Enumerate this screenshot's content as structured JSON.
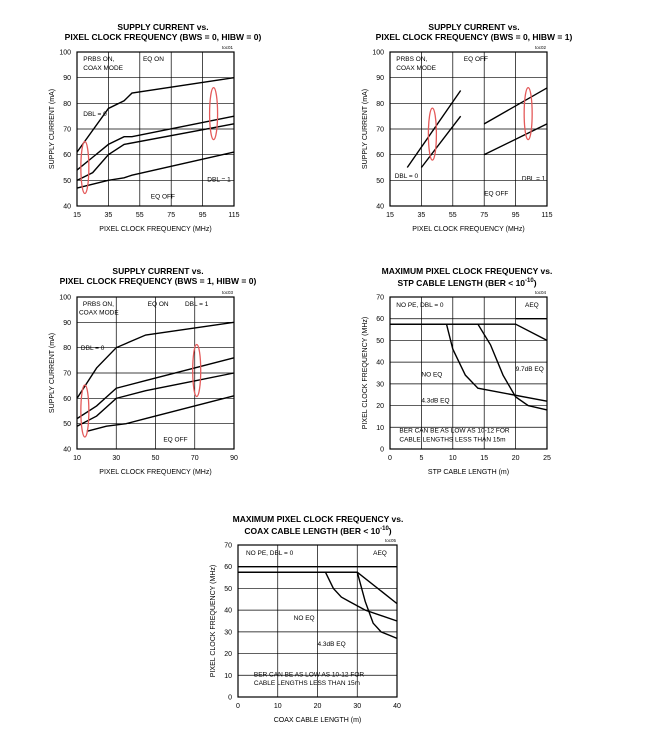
{
  "chart_data": [
    {
      "type": "line",
      "title_line1": "SUPPLY CURRENT vs.",
      "title_line2": "PIXEL CLOCK FREQUENCY (BWS = 0, HIBW = 0)",
      "toc": "toc01",
      "xlabel": "PIXEL CLOCK FREQUENCY (MHz)",
      "ylabel": "SUPPLY CURRENT (mA)",
      "xlim": [
        15,
        115
      ],
      "ylim": [
        40,
        100
      ],
      "xticks": [
        15,
        35,
        55,
        75,
        95,
        115
      ],
      "yticks": [
        40,
        50,
        60,
        70,
        80,
        90,
        100
      ],
      "grid": true,
      "series": [
        {
          "x": [
            15,
            35,
            45,
            50,
            115
          ],
          "y": [
            61,
            78,
            81,
            84,
            90
          ]
        },
        {
          "x": [
            15,
            25,
            35,
            45,
            50,
            115
          ],
          "y": [
            54,
            59,
            64,
            67,
            67,
            75
          ]
        },
        {
          "x": [
            15,
            25,
            35,
            45,
            115
          ],
          "y": [
            50,
            53,
            60,
            64,
            72
          ]
        },
        {
          "x": [
            15,
            35,
            45,
            50,
            115
          ],
          "y": [
            47,
            50,
            51,
            52,
            61
          ]
        }
      ],
      "ellipses": [
        {
          "x": 20,
          "y": 55
        },
        {
          "x": 102,
          "y": 76
        }
      ],
      "annotations": [
        {
          "text": "PRBS ON,",
          "x": 19,
          "y": 96.5
        },
        {
          "text": "COAX MODE",
          "x": 19,
          "y": 93
        },
        {
          "text": "EQ ON",
          "x": 57,
          "y": 96.5
        },
        {
          "text": "DBL = 0",
          "x": 19,
          "y": 75
        },
        {
          "text": "EQ OFF",
          "x": 62,
          "y": 43
        },
        {
          "text": "DBL = 1",
          "x": 98,
          "y": 49.5
        }
      ]
    },
    {
      "type": "line",
      "title_line1": "SUPPLY CURRENT vs.",
      "title_line2": "PIXEL CLOCK FREQUENCY (BWS = 0, HIBW = 1)",
      "toc": "toc02",
      "xlabel": "PIXEL CLOCK FREQUENCY (MHz)",
      "ylabel": "SUPPLY CURRENT (mA)",
      "xlim": [
        15,
        115
      ],
      "ylim": [
        40,
        100
      ],
      "xticks": [
        15,
        35,
        55,
        75,
        95,
        115
      ],
      "yticks": [
        40,
        50,
        60,
        70,
        80,
        90,
        100
      ],
      "grid": true,
      "series": [
        {
          "x": [
            26,
            60
          ],
          "y": [
            55,
            85
          ]
        },
        {
          "x": [
            35,
            60
          ],
          "y": [
            55,
            75
          ]
        },
        {
          "x": [
            75,
            115
          ],
          "y": [
            72,
            86
          ]
        },
        {
          "x": [
            75,
            115
          ],
          "y": [
            60,
            72
          ]
        }
      ],
      "ellipses": [
        {
          "x": 42,
          "y": 68
        },
        {
          "x": 103,
          "y": 76
        }
      ],
      "annotations": [
        {
          "text": "PRBS ON,",
          "x": 19,
          "y": 96.5
        },
        {
          "text": "COAX MODE",
          "x": 19,
          "y": 93
        },
        {
          "text": "EQ OFF",
          "x": 62,
          "y": 96.5
        },
        {
          "text": "DBL = 0",
          "x": 18,
          "y": 51
        },
        {
          "text": "EQ OFF",
          "x": 75,
          "y": 44
        },
        {
          "text": "DBL = 1",
          "x": 99,
          "y": 50
        }
      ]
    },
    {
      "type": "line",
      "title_line1": "SUPPLY CURRENT vs.",
      "title_line2": "PIXEL CLOCK FREQUENCY (BWS = 1, HIBW = 0)",
      "toc": "toc03",
      "xlabel": "PIXEL CLOCK FREQUENCY (MHz)",
      "ylabel": "SUPPLY CURRENT (mA)",
      "xlim": [
        10,
        90
      ],
      "ylim": [
        40,
        100
      ],
      "xticks": [
        10,
        30,
        50,
        70,
        90
      ],
      "yticks": [
        40,
        50,
        60,
        70,
        80,
        90,
        100
      ],
      "grid": true,
      "series": [
        {
          "x": [
            10,
            20,
            30,
            45,
            90
          ],
          "y": [
            60,
            72,
            80,
            85,
            90
          ]
        },
        {
          "x": [
            10,
            20,
            30,
            45,
            90
          ],
          "y": [
            52,
            57,
            64,
            67,
            76
          ]
        },
        {
          "x": [
            10,
            20,
            30,
            45,
            90
          ],
          "y": [
            49,
            53,
            60,
            63,
            70
          ]
        },
        {
          "x": [
            15,
            25,
            35,
            45,
            90
          ],
          "y": [
            47,
            49,
            50,
            52,
            61
          ]
        }
      ],
      "ellipses": [
        {
          "x": 14,
          "y": 55
        },
        {
          "x": 71,
          "y": 71
        }
      ],
      "annotations": [
        {
          "text": "PRBS ON,",
          "x": 13,
          "y": 96.5
        },
        {
          "text": "COAX MODE",
          "x": 11,
          "y": 93
        },
        {
          "text": "EQ ON",
          "x": 46,
          "y": 96.5
        },
        {
          "text": "DBL = 1",
          "x": 65,
          "y": 96.5
        },
        {
          "text": "DBL = 0",
          "x": 12,
          "y": 79
        },
        {
          "text": "EQ OFF",
          "x": 54,
          "y": 43
        }
      ]
    },
    {
      "type": "line",
      "title_line1": "MAXIMUM PIXEL CLOCK FREQUENCY vs.",
      "title_line2": "STP CABLE LENGTH (BER < 10",
      "title_sup": "-10",
      "title_tail": ")",
      "toc": "toc04",
      "xlabel": "STP CABLE LENGTH (m)",
      "ylabel": "PIXEL CLOCK FREQUENCY (MHz)",
      "xlim": [
        0,
        25
      ],
      "ylim": [
        0,
        70
      ],
      "xticks": [
        0,
        5,
        10,
        15,
        20,
        25
      ],
      "yticks": [
        0,
        10,
        20,
        30,
        40,
        50,
        60,
        70
      ],
      "grid": true,
      "series": [
        {
          "name": "NO EQ",
          "x": [
            0,
            9,
            10,
            11,
            12,
            14,
            25
          ],
          "y": [
            57.5,
            57.5,
            46,
            40,
            34,
            28,
            22
          ]
        },
        {
          "name": "4.3dB EQ",
          "x": [
            0,
            14,
            16,
            18,
            20,
            22,
            25
          ],
          "y": [
            57.5,
            57.5,
            48,
            34,
            24,
            20,
            18
          ]
        },
        {
          "name": "9.7dB EQ",
          "x": [
            0,
            20,
            25
          ],
          "y": [
            57.5,
            57.5,
            50
          ]
        },
        {
          "name": "AEQ",
          "x": [
            20,
            25
          ],
          "y": [
            60,
            60
          ]
        }
      ],
      "annotations": [
        {
          "text": "NO PE, DBL = 0",
          "x": 1,
          "y": 65.5
        },
        {
          "text": "AEQ",
          "x": 21.5,
          "y": 65.5
        },
        {
          "text": "9.7dB EQ",
          "x": 20,
          "y": 36
        },
        {
          "text": "NO EQ",
          "x": 5,
          "y": 33.5
        },
        {
          "text": "4.3dB EQ",
          "x": 5,
          "y": 21.5
        },
        {
          "text": "BER CAN BE AS LOW AS 10-12 FOR",
          "x": 1.5,
          "y": 7.5
        },
        {
          "text": "CABLE LENGTHS LESS THAN 15m",
          "x": 1.5,
          "y": 3.5
        }
      ]
    },
    {
      "type": "line",
      "title_line1": "MAXIMUM PIXEL CLOCK FREQUENCY vs.",
      "title_line2": "COAX CABLE LENGTH (BER < 10",
      "title_sup": "-10",
      "title_tail": ")",
      "toc": "toc05",
      "xlabel": "COAX CABLE LENGTH (m)",
      "ylabel": "PIXEL CLOCK FREQUENCY (MHz)",
      "xlim": [
        0,
        40
      ],
      "ylim": [
        0,
        70
      ],
      "xticks": [
        0,
        10,
        20,
        30,
        40
      ],
      "yticks": [
        0,
        10,
        20,
        30,
        40,
        50,
        60,
        70
      ],
      "grid": true,
      "series": [
        {
          "name": "NO EQ",
          "x": [
            0,
            22,
            24,
            26,
            28,
            32,
            40
          ],
          "y": [
            57.5,
            57.5,
            50,
            46,
            44,
            40,
            35
          ]
        },
        {
          "name": "4.3dB EQ",
          "x": [
            0,
            30,
            32,
            34,
            36,
            40
          ],
          "y": [
            57.5,
            57.5,
            44,
            34,
            30,
            27
          ]
        },
        {
          "name": "AEQ",
          "x": [
            0,
            30,
            40
          ],
          "y": [
            57.5,
            57.5,
            43
          ]
        },
        {
          "name": "AEQ upper",
          "x": [
            0,
            40
          ],
          "y": [
            60,
            60
          ]
        }
      ],
      "annotations": [
        {
          "text": "NO PE, DBL = 0",
          "x": 2,
          "y": 65.5
        },
        {
          "text": "AEQ",
          "x": 34,
          "y": 65.5
        },
        {
          "text": "NO EQ",
          "x": 14,
          "y": 35.5
        },
        {
          "text": "4.3dB EQ",
          "x": 20,
          "y": 23.5
        },
        {
          "text": "BER CAN BE AS LOW AS 10-12 FOR",
          "x": 4,
          "y": 9.5
        },
        {
          "text": "CABLE LENGTHS LESS THAN 15m",
          "x": 4,
          "y": 5.5
        }
      ]
    }
  ]
}
